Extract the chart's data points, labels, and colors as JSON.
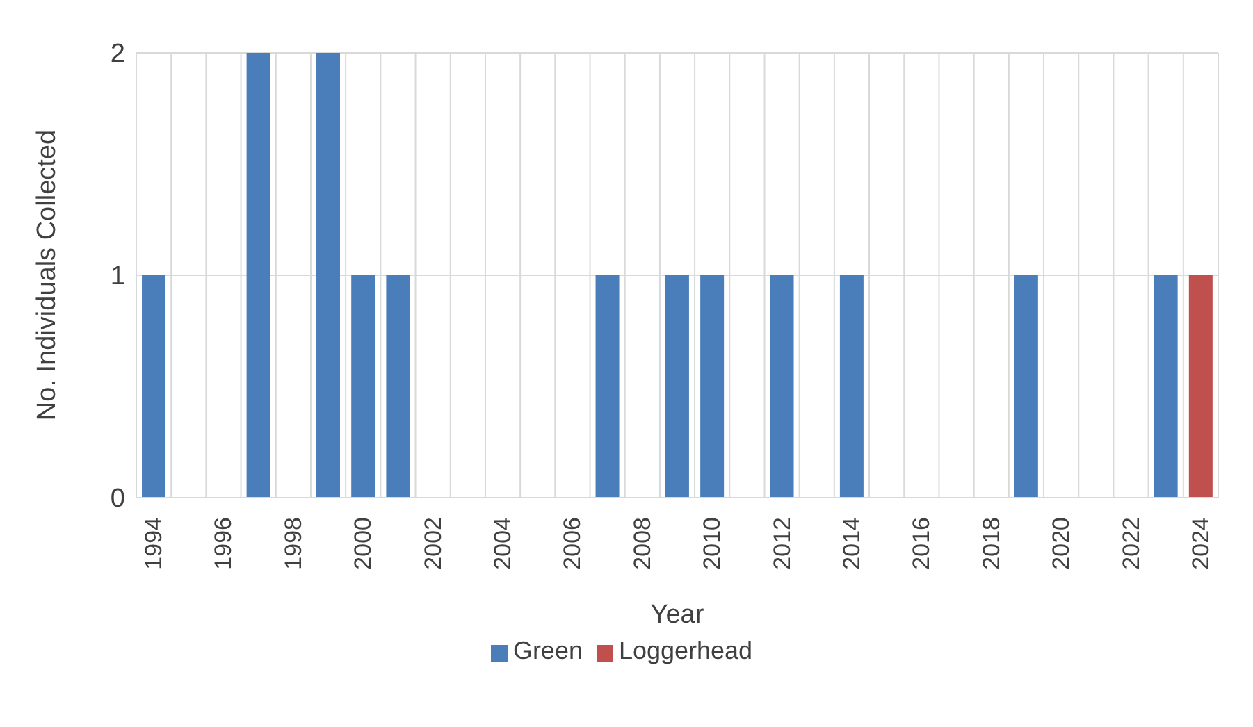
{
  "chart_data": {
    "type": "bar",
    "stacked": true,
    "xlabel": "Year",
    "ylabel": "No. Individuals Collected",
    "categories": [
      "1994",
      null,
      "1996",
      null,
      "1998",
      null,
      "2000",
      null,
      "2002",
      null,
      "2004",
      null,
      "2006",
      null,
      "2008",
      null,
      "2010",
      null,
      "2012",
      null,
      "2014",
      null,
      "2016",
      null,
      "2018",
      null,
      "2020",
      null,
      "2022",
      null,
      "2024"
    ],
    "series": [
      {
        "name": "Green",
        "color": "#4a7ebb",
        "values": [
          1,
          0,
          0,
          2,
          0,
          2,
          1,
          1,
          0,
          0,
          0,
          0,
          0,
          1,
          0,
          1,
          1,
          0,
          1,
          0,
          1,
          0,
          0,
          0,
          0,
          1,
          0,
          0,
          0,
          1,
          0
        ]
      },
      {
        "name": "Loggerhead",
        "color": "#c0504d",
        "values": [
          0,
          0,
          0,
          0,
          0,
          0,
          0,
          0,
          0,
          0,
          0,
          0,
          0,
          0,
          0,
          0,
          0,
          0,
          0,
          0,
          0,
          0,
          0,
          0,
          0,
          0,
          0,
          0,
          0,
          0,
          1
        ]
      }
    ],
    "ylim": [
      0,
      2
    ],
    "yticks": [
      0,
      1,
      2
    ],
    "grid": true,
    "legend": "bottom"
  }
}
